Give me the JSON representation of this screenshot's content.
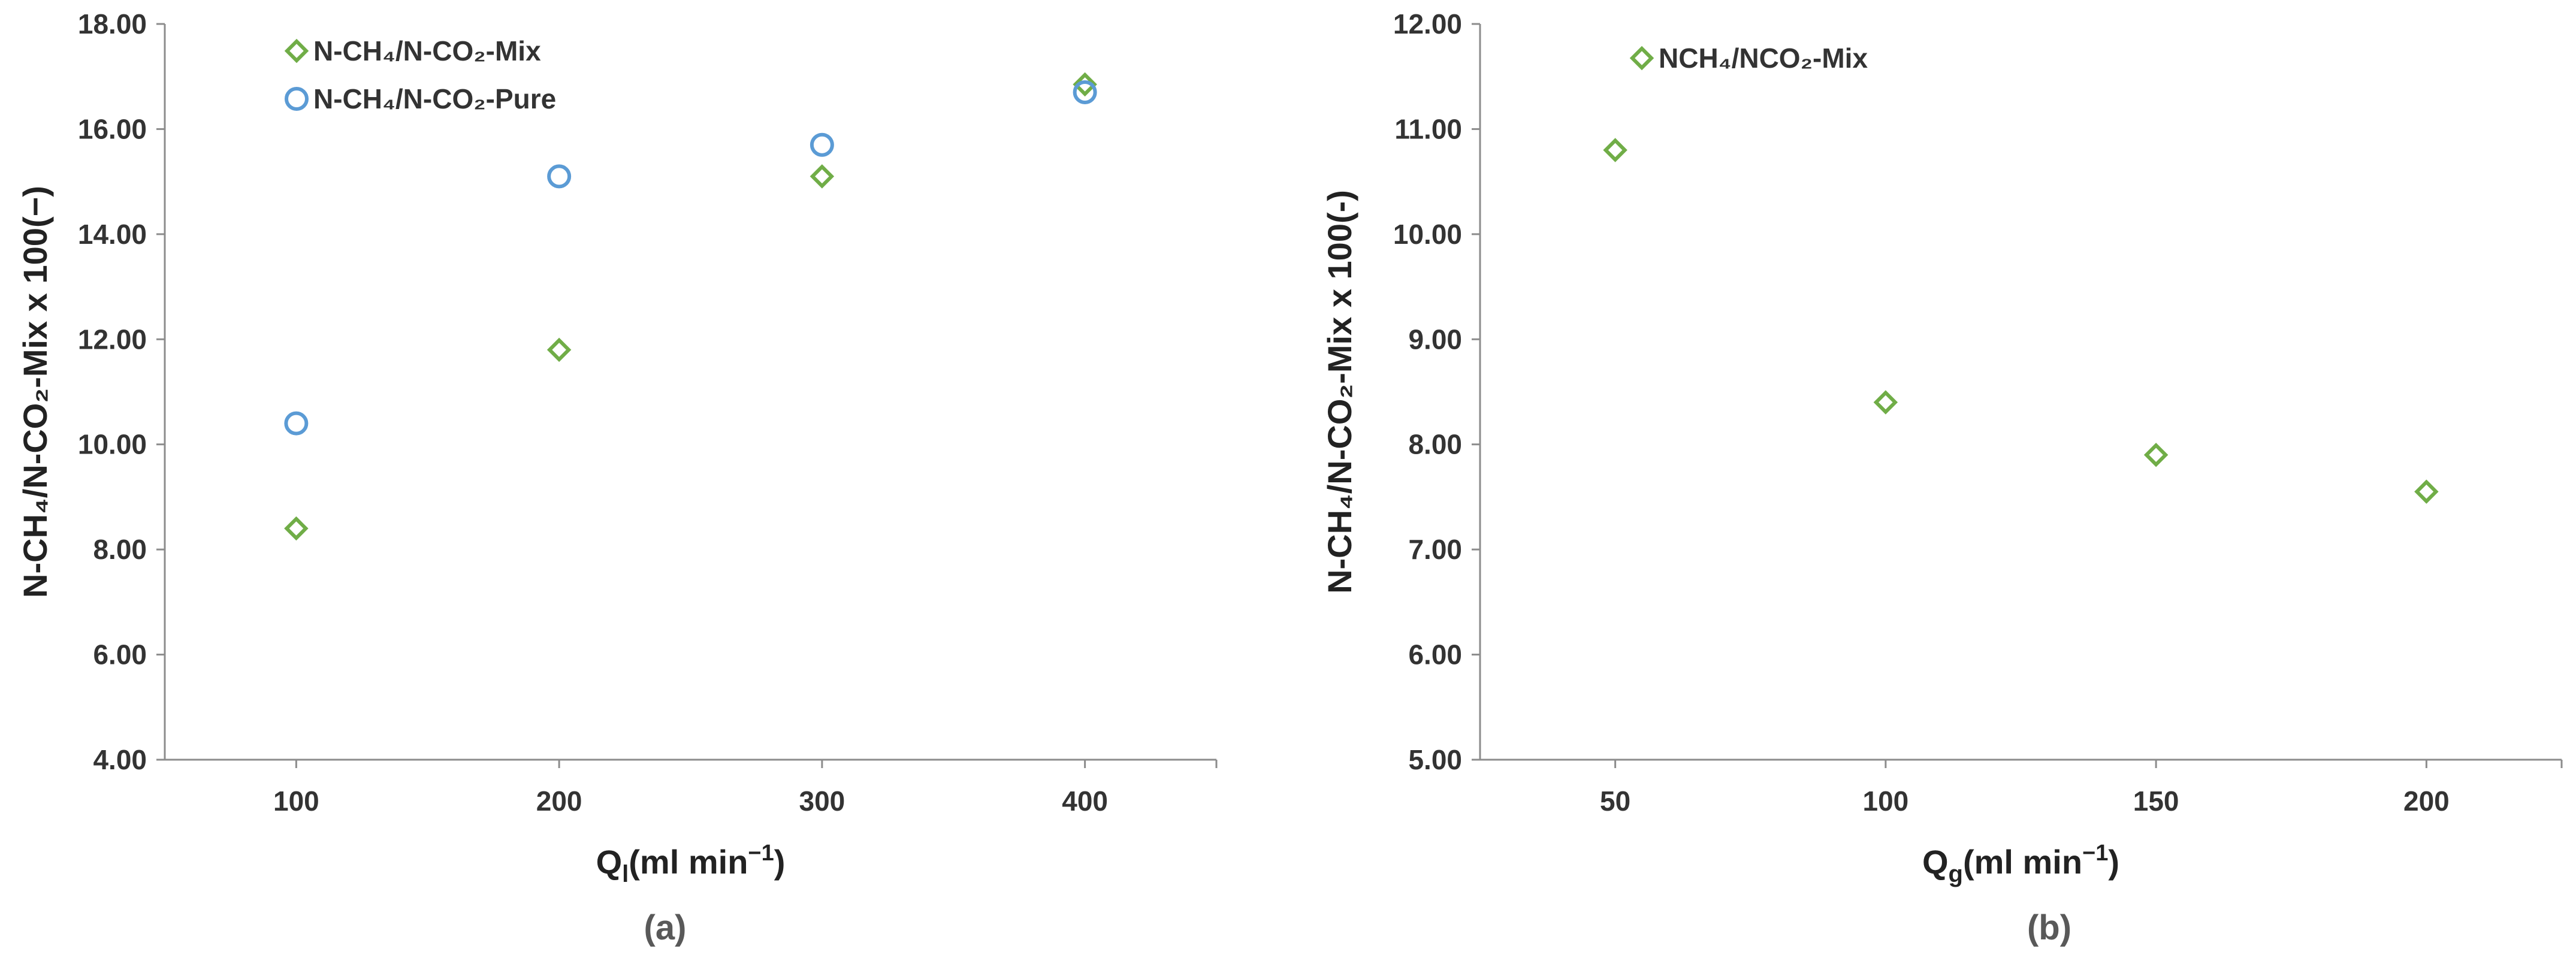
{
  "chart_data": [
    {
      "type": "scatter",
      "caption": "(a)",
      "xlabel_main": "Q",
      "xlabel_sub": "l",
      "xlabel_rest": "(ml min",
      "xlabel_exp": "−1",
      "xlabel_close": ")",
      "ylabel": "N-CH₄/N-CO₂-Mix x 100(−)",
      "xlim": [
        50,
        450
      ],
      "ylim": [
        4,
        18
      ],
      "x_ticks": [
        100,
        200,
        300,
        400
      ],
      "x_tick_labels": [
        "100",
        "200",
        "300",
        "400"
      ],
      "y_ticks": [
        4,
        6,
        8,
        10,
        12,
        14,
        16,
        18
      ],
      "y_tick_labels": [
        "4.00",
        "6.00",
        "8.00",
        "10.00",
        "12.00",
        "14.00",
        "16.00",
        "18.00"
      ],
      "legend_placement": "top-left",
      "grid": false,
      "series": [
        {
          "name": "N-CH₄/N-CO₂-Mix",
          "marker": "diamond",
          "color": "#70ad47",
          "x": [
            100,
            200,
            300,
            400
          ],
          "y": [
            8.4,
            11.8,
            15.1,
            16.85
          ]
        },
        {
          "name": "N-CH₄/N-CO₂-Pure",
          "marker": "circle",
          "color": "#5b9bd5",
          "x": [
            100,
            200,
            300,
            400
          ],
          "y": [
            10.4,
            15.1,
            15.7,
            16.7
          ]
        }
      ]
    },
    {
      "type": "scatter",
      "caption": "(b)",
      "xlabel_main": "Q",
      "xlabel_sub": "g",
      "xlabel_rest": "(ml min",
      "xlabel_exp": "−1",
      "xlabel_close": ")",
      "ylabel": "N-CH₄/N-CO₂-Mix x 100(-)",
      "xlim": [
        25,
        225
      ],
      "ylim": [
        5,
        12
      ],
      "x_ticks": [
        50,
        100,
        150,
        200
      ],
      "x_tick_labels": [
        "50",
        "100",
        "150",
        "200"
      ],
      "y_ticks": [
        5,
        6,
        7,
        8,
        9,
        10,
        11,
        12
      ],
      "y_tick_labels": [
        "5.00",
        "6.00",
        "7.00",
        "8.00",
        "9.00",
        "10.00",
        "11.00",
        "12.00"
      ],
      "legend_placement": "top-left",
      "grid": false,
      "series": [
        {
          "name": "NCH₄/NCO₂-Mix",
          "marker": "diamond",
          "color": "#70ad47",
          "x": [
            50,
            100,
            150,
            200
          ],
          "y": [
            10.8,
            8.4,
            7.9,
            7.55
          ]
        }
      ]
    }
  ]
}
